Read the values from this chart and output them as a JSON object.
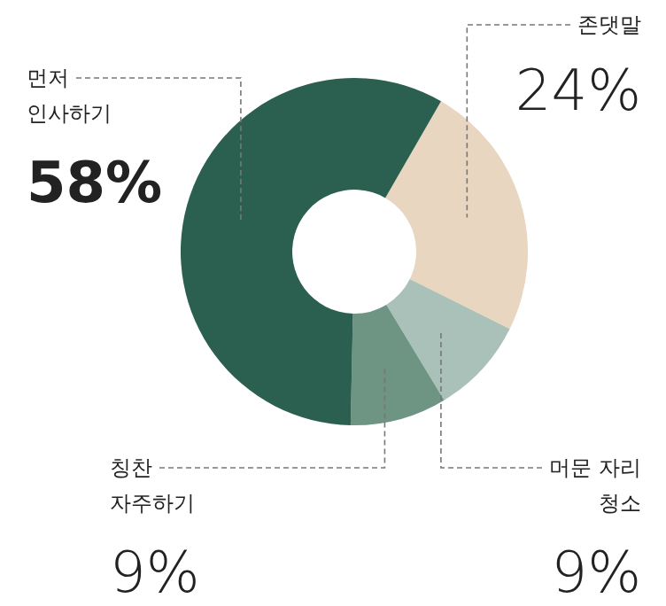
{
  "chart_data": {
    "type": "donut",
    "categories": [
      "존댓말",
      "머문 자리\n청소",
      "칭찬\n자주하기",
      "먼저\n인사하기"
    ],
    "values": [
      24,
      9,
      9,
      58
    ],
    "colors": [
      "#e8d6c1",
      "#a9c1b8",
      "#6e9484",
      "#2b5f4f"
    ],
    "value_labels": [
      "24%",
      "9%",
      "9%",
      "58%"
    ]
  }
}
